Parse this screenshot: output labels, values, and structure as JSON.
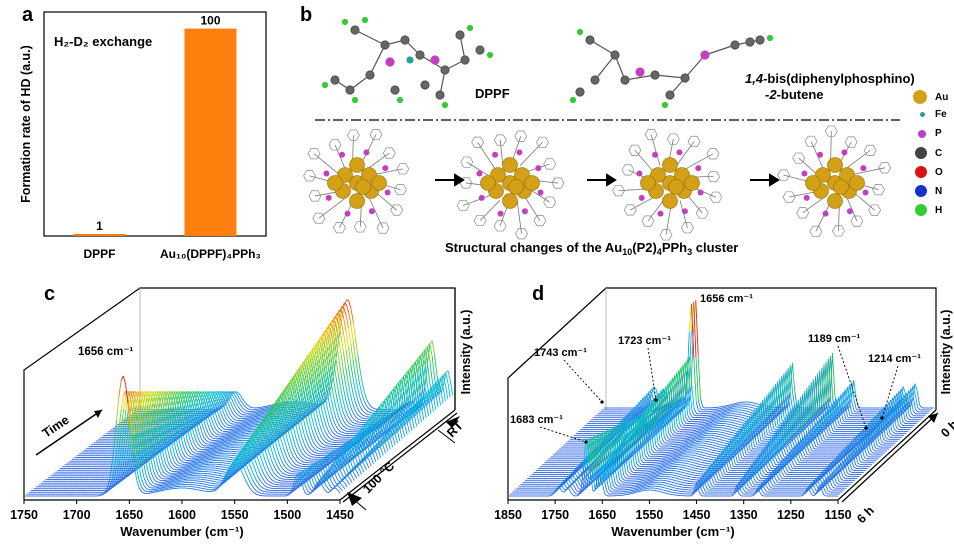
{
  "panel_a": {
    "label": "a",
    "annotation": "H₂-D₂ exchange",
    "chart_data": {
      "type": "bar",
      "title": "",
      "categories": [
        "DPPF",
        "Au₁₀(DPPF)₄PPh₃"
      ],
      "values": [
        1,
        100
      ],
      "data_labels": [
        "1",
        "100"
      ],
      "ylabel": "Formation rate of HD (a.u.)",
      "ylim": [
        0,
        108
      ],
      "bar_color": "#ff7f0e",
      "grid": false
    }
  },
  "panel_b": {
    "label": "b",
    "ligand1_name": "DPPF",
    "ligand2_name_line1": "1,4-bis(diphenylphosphino)",
    "ligand2_name_line2": "-2-butene",
    "caption_pre": "Structural changes of the Au",
    "caption_sub1": "10",
    "caption_mid": "(P2)",
    "caption_sub2": "4",
    "caption_post": "PPh",
    "caption_sub3": "3",
    "caption_end": " cluster",
    "legend": [
      {
        "symbol": "Au",
        "color": "#d4a017",
        "size": 14
      },
      {
        "symbol": "Fe",
        "color": "#2aa198",
        "size": 5
      },
      {
        "symbol": "P",
        "color": "#c040c0",
        "size": 8
      },
      {
        "symbol": "C",
        "color": "#444444",
        "size": 12
      },
      {
        "symbol": "O",
        "color": "#dd1111",
        "size": 12
      },
      {
        "symbol": "N",
        "color": "#1133cc",
        "size": 12
      },
      {
        "symbol": "H",
        "color": "#33cc33",
        "size": 12
      }
    ]
  },
  "panel_c": {
    "label": "c",
    "peak_label": "1656 cm⁻¹",
    "time_label": "Time",
    "temp_label": "100 °C",
    "rt_label": "RT",
    "xlabel": "Wavenumber (cm⁻¹)",
    "zlabel": "Intensity (a.u.)",
    "chart_data": {
      "type": "line",
      "x_ticks": [
        1750,
        1700,
        1650,
        1600,
        1550,
        1500,
        1450
      ],
      "xlim": [
        1750,
        1450
      ],
      "peaks_cm": [
        1656,
        1550,
        1480,
        1465
      ],
      "annotations": [
        "1656 cm⁻¹"
      ]
    }
  },
  "panel_d": {
    "label": "d",
    "peak_labels": [
      "1656 cm⁻¹",
      "1743 cm⁻¹",
      "1723 cm⁻¹",
      "1683 cm⁻¹",
      "1189 cm⁻¹",
      "1214 cm⁻¹"
    ],
    "time_start": "0 h",
    "time_end": "6 h",
    "xlabel": "Wavenumber (cm⁻¹)",
    "zlabel": "Intensity (a.u.)",
    "chart_data": {
      "type": "line",
      "x_ticks": [
        1850,
        1750,
        1650,
        1550,
        1450,
        1350,
        1250,
        1150
      ],
      "xlim": [
        1850,
        1150
      ],
      "peaks_cm": [
        1656,
        1743,
        1723,
        1683,
        1189,
        1214
      ],
      "annotations": [
        "1656 cm⁻¹",
        "1743 cm⁻¹",
        "1723 cm⁻¹",
        "1683 cm⁻¹",
        "1189 cm⁻¹",
        "1214 cm⁻¹"
      ]
    }
  }
}
